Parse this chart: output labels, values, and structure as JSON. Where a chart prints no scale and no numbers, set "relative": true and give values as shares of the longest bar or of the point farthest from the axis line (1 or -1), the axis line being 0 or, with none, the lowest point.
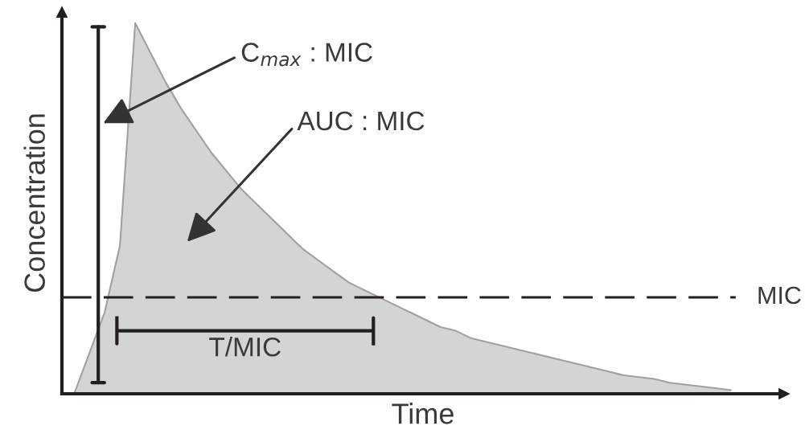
{
  "chart_data": {
    "type": "area",
    "relative": true,
    "xlabel": "Time",
    "ylabel": "Concentration",
    "categories": [
      null,
      null,
      null,
      null,
      null,
      null,
      null,
      null,
      null,
      null,
      null,
      null,
      null,
      null,
      null,
      null,
      null,
      null,
      null,
      null,
      null,
      null,
      null,
      null,
      null,
      null,
      null,
      null,
      null,
      null,
      null,
      null,
      null,
      null,
      null,
      null,
      null,
      null,
      null,
      null,
      null,
      null,
      null,
      null
    ],
    "series": [
      {
        "color": "#d3d4d6",
        "values": [
          0,
          0.11,
          0.22,
          0.4,
          1.0,
          0.92,
          0.84,
          0.77,
          0.71,
          0.65,
          0.6,
          0.55,
          0.51,
          0.47,
          0.43,
          0.39,
          0.36,
          0.33,
          0.3,
          0.28,
          0.26,
          0.24,
          0.22,
          0.2,
          0.18,
          0.17,
          0.15,
          0.14,
          0.13,
          0.12,
          0.11,
          0.1,
          0.09,
          0.08,
          0.07,
          0.06,
          0.05,
          0.045,
          0.04,
          0.03,
          0.025,
          0.02,
          0.015,
          0.01
        ]
      }
    ],
    "ref_lines": [
      {
        "axis": "y",
        "value": 0.26,
        "label": "MIC",
        "color": "#231f20",
        "line_style": "dashed"
      }
    ],
    "annotations": [
      "C$_{max}$ : MIC",
      "AUC : MIC",
      "T/MIC"
    ]
  }
}
